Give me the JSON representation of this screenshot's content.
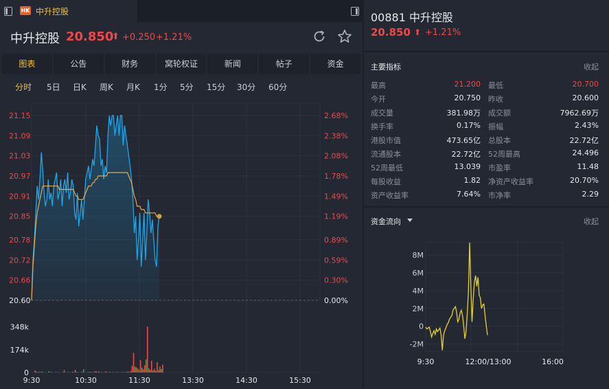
{
  "tab": {
    "market_badge": "HK",
    "title": "中升控股"
  },
  "quote": {
    "name": "中升控股",
    "price": "20.850",
    "arrow": "⬆",
    "change": "+0.250",
    "change_pct": "+1.21%"
  },
  "main_tabs": [
    "图表",
    "公告",
    "财务",
    "窝轮权证",
    "新闻",
    "帖子",
    "资金"
  ],
  "periods": [
    "分时",
    "5日",
    "日K",
    "周K",
    "月K",
    "1分",
    "5分",
    "15分",
    "30分",
    "60分"
  ],
  "colors": {
    "up": "#f04848",
    "down": "#3fa34d",
    "accent": "#f0c03a",
    "price_line": "#1fa6e8",
    "avg_line": "#e8a94a"
  },
  "chart_data": [
    {
      "type": "line",
      "series": [
        {
          "values": [
            20.6,
            20.72,
            20.78,
            20.86,
            20.94,
            20.9,
            20.96,
            21.04,
            20.99,
            20.92,
            20.88,
            20.9,
            20.96,
            20.9,
            20.92,
            20.88,
            20.94,
            20.96,
            20.98,
            20.9,
            20.92,
            20.96,
            20.88,
            20.94,
            20.96,
            20.92,
            20.98,
            20.9,
            20.92,
            20.96,
            20.94,
            20.86,
            20.84,
            20.92,
            20.82,
            20.86,
            20.9,
            20.84,
            20.9,
            20.96,
            20.98,
            21.0,
            20.96,
            20.99,
            21.02,
            21.0,
            21.06,
            21.12,
            21.09,
            21.08,
            21.0,
            21.02,
            20.96,
            21.0,
            20.98,
            21.09,
            21.15,
            21.12,
            21.15,
            21.15,
            21.09,
            21.12,
            21.15,
            21.09,
            21.15,
            21.15,
            21.06,
            21.12,
            21.09,
            21.06,
            21.03,
            21.0,
            20.96,
            20.9,
            20.8,
            20.85,
            20.72,
            20.78,
            20.86,
            20.7,
            20.78,
            20.86,
            20.72,
            20.8,
            20.9,
            20.86,
            20.8,
            20.84,
            20.78,
            20.72,
            20.7,
            20.82,
            20.85
          ],
          "color": "#1fa6e8"
        },
        {
          "values": [
            20.6,
            20.7,
            20.76,
            20.82,
            20.86,
            20.88,
            20.9,
            20.92,
            20.94,
            20.94,
            20.94,
            20.94,
            20.94,
            20.94,
            20.94,
            20.94,
            20.94,
            20.94,
            20.94,
            20.94,
            20.93,
            20.93,
            20.93,
            20.93,
            20.93,
            20.93,
            20.93,
            20.93,
            20.93,
            20.93,
            20.93,
            20.92,
            20.91,
            20.91,
            20.9,
            20.9,
            20.9,
            20.9,
            20.91,
            20.92,
            20.93,
            20.94,
            20.94,
            20.94,
            20.95,
            20.95,
            20.96,
            20.96,
            20.97,
            20.97,
            20.97,
            20.97,
            20.97,
            20.97,
            20.97,
            20.98,
            20.98,
            20.98,
            20.98,
            20.98,
            20.98,
            20.98,
            20.98,
            20.98,
            20.98,
            20.98,
            20.98,
            20.98,
            20.98,
            20.98,
            20.97,
            20.96,
            20.95,
            20.93,
            20.91,
            20.9,
            20.88,
            20.88,
            20.88,
            20.87,
            20.87,
            20.87,
            20.86,
            20.86,
            20.86,
            20.86,
            20.86,
            20.86,
            20.86,
            20.86,
            20.85,
            20.85,
            20.85
          ],
          "color": "#e8a94a"
        }
      ],
      "x_ticks": [
        "9:30",
        "10:30",
        "11:30",
        "13:30",
        "14:30",
        "15:30"
      ],
      "y_ticks": [
        "21.15",
        "21.09",
        "21.03",
        "20.97",
        "20.91",
        "20.85",
        "20.78",
        "20.72",
        "20.66",
        "20.60"
      ],
      "y_ticks_right": [
        "2.68%",
        "2.38%",
        "2.08%",
        "1.78%",
        "1.49%",
        "1.19%",
        "0.89%",
        "0.59%",
        "0.30%",
        "0.00%"
      ],
      "ylim": [
        20.6,
        21.15
      ],
      "volume": {
        "ticks": [
          "348k",
          "174k",
          "0"
        ],
        "ylim": [
          0,
          430
        ],
        "values": [
          16,
          6,
          3,
          5,
          4,
          8,
          2,
          1,
          0,
          0,
          10,
          2,
          4,
          0,
          1,
          3,
          2,
          3,
          0,
          0,
          2,
          18,
          1,
          2,
          3,
          1,
          0,
          6,
          2,
          20,
          4,
          2,
          0,
          3,
          4,
          25,
          2,
          0,
          3,
          4,
          6,
          2,
          3,
          7,
          10,
          3,
          8,
          2,
          4,
          1,
          2,
          9,
          3,
          2,
          5,
          1,
          3,
          2,
          1,
          4,
          2,
          1,
          2,
          3,
          2,
          2,
          5,
          7,
          3,
          12,
          50,
          150,
          45,
          40,
          30,
          20,
          95,
          38,
          25,
          55,
          100,
          350,
          32,
          20,
          90,
          15,
          28,
          12,
          80,
          18,
          45,
          25,
          60
        ],
        "up": [
          true,
          true,
          false,
          true,
          true,
          false,
          true,
          true,
          true,
          true,
          false,
          true,
          false,
          true,
          true,
          true,
          false,
          true,
          true,
          true,
          true,
          true,
          false,
          true,
          false,
          true,
          true,
          false,
          true,
          true,
          true,
          false,
          true,
          true,
          true,
          false,
          true,
          false,
          true,
          true,
          true,
          false,
          true,
          true,
          true,
          false,
          true,
          true,
          false,
          true,
          true,
          true,
          false,
          true,
          true,
          false,
          true,
          true,
          false,
          true,
          true,
          false,
          true,
          true,
          false,
          true,
          true,
          false,
          true,
          true,
          true,
          true,
          false,
          true,
          false,
          true,
          true,
          false,
          true,
          true,
          false,
          true,
          false,
          true,
          true,
          false,
          true,
          false,
          true,
          true,
          false,
          true,
          true
        ]
      }
    },
    {
      "type": "line",
      "series": [
        {
          "values": [
            -0.1,
            -0.3,
            -0.2,
            -0.1,
            -0.6,
            -1.2,
            -0.8,
            -0.5,
            -0.9,
            -0.3,
            -0.6,
            -0.4,
            -0.2,
            -1.0,
            -2.7,
            -1.0,
            -0.5,
            -0.2,
            0.2,
            0.4,
            0.8,
            1.0,
            1.2,
            1.8,
            2.0,
            2.2,
            1.6,
            0.5,
            0.8,
            1.5,
            1.8,
            1.2,
            0.0,
            -1.4,
            -0.6,
            1.5,
            4.0,
            9.4,
            4.5,
            0.5,
            3.0,
            5.0,
            5.7,
            4.5,
            5.5,
            3.5,
            3.2,
            2.0,
            2.4,
            2.5,
            1.2,
            0.0,
            -1.0
          ],
          "color": "#e6d22e"
        }
      ],
      "x_ticks": [
        "9:30",
        "12:00/13:00",
        "16:00"
      ],
      "y_ticks": [
        "8M",
        "6M",
        "4M",
        "2M",
        "0",
        "-2M"
      ],
      "ylim": [
        -2.8,
        9.4
      ]
    }
  ],
  "metrics": {
    "title": "主要指标",
    "collapse": "收起",
    "rows": [
      [
        "最高",
        "21.200",
        "最低",
        "20.700"
      ],
      [
        "今开",
        "20.750",
        "昨收",
        "20.600"
      ],
      [
        "成交量",
        "381.98万",
        "成交额",
        "7962.69万"
      ],
      [
        "换手率",
        "0.17%",
        "振幅",
        "2.43%"
      ],
      [
        "港股市值",
        "473.65亿",
        "总股本",
        "22.72亿"
      ],
      [
        "流通股本",
        "22.72亿",
        "52周最高",
        "24.496"
      ],
      [
        "52周最低",
        "13.039",
        "市盈率",
        "11.48"
      ],
      [
        "每股收益",
        "1.82",
        "净资产收益率",
        "20.70%"
      ],
      [
        "资产收益率",
        "7.64%",
        "市净率",
        "2.29"
      ]
    ]
  },
  "right_header": {
    "code_name": "00881 中升控股",
    "price": "20.850",
    "arrow": "⬆",
    "change_pct": "+1.21%"
  },
  "fund_flow": {
    "title": "资金流向",
    "collapse": "收起"
  }
}
